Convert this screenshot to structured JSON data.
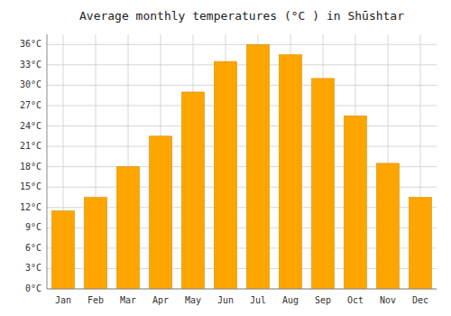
{
  "chart_data": {
    "type": "bar",
    "title": "Average monthly temperatures (°C ) in Shūshtar",
    "categories": [
      "Jan",
      "Feb",
      "Mar",
      "Apr",
      "May",
      "Jun",
      "Jul",
      "Aug",
      "Sep",
      "Oct",
      "Nov",
      "Dec"
    ],
    "values": [
      11.5,
      13.5,
      18.0,
      22.5,
      29.0,
      33.5,
      36.0,
      34.5,
      31.0,
      25.5,
      18.5,
      13.5
    ],
    "color": "#FFA500",
    "ylim": [
      0,
      37.5
    ],
    "yticks": [
      {
        "value": 0,
        "label": "0°C"
      },
      {
        "value": 3,
        "label": "3°C"
      },
      {
        "value": 6,
        "label": "6°C"
      },
      {
        "value": 9,
        "label": "9°C"
      },
      {
        "value": 12,
        "label": "12°C"
      },
      {
        "value": 15,
        "label": "15°C"
      },
      {
        "value": 18,
        "label": "18°C"
      },
      {
        "value": 21,
        "label": "21°C"
      },
      {
        "value": 24,
        "label": "24°C"
      },
      {
        "value": 27,
        "label": "27°C"
      },
      {
        "value": 30,
        "label": "30°C"
      },
      {
        "value": 33,
        "label": "33°C"
      },
      {
        "value": 36,
        "label": "36°C"
      }
    ],
    "grid": true
  }
}
